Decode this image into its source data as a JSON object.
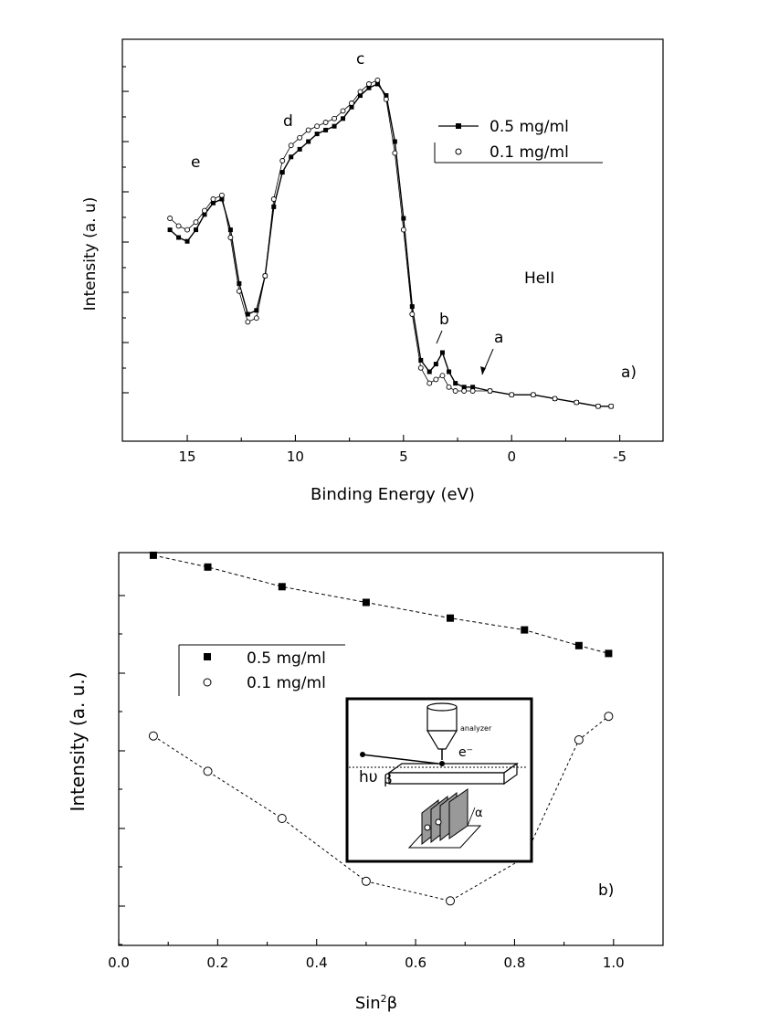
{
  "chart_data": [
    {
      "panel": "a)",
      "type": "line",
      "xlabel": "Binding Energy (eV)",
      "ylabel": "Intensity (a. u)",
      "xlim": [
        18,
        -7
      ],
      "x_reversed": true,
      "xticks": [
        15,
        10,
        5,
        0,
        -5
      ],
      "xtick_labels": [
        "15",
        "10",
        "5",
        "0",
        "-5"
      ],
      "y_tick_labels_shown": false,
      "ylim": [
        0,
        1
      ],
      "legend": [
        {
          "label": "0.5 mg/ml",
          "marker": "filled-square"
        },
        {
          "label": "0.1 mg/ml",
          "marker": "open-circle"
        }
      ],
      "legend_position": "top-right",
      "series": [
        {
          "name": "0.5 mg/ml",
          "x": [
            15.8,
            15.4,
            15.0,
            14.6,
            14.2,
            13.8,
            13.4,
            13.0,
            12.6,
            12.2,
            11.8,
            11.4,
            11.0,
            10.6,
            10.2,
            9.8,
            9.4,
            9.0,
            8.6,
            8.2,
            7.8,
            7.4,
            7.0,
            6.6,
            6.2,
            5.8,
            5.4,
            5.0,
            4.6,
            4.2,
            3.8,
            3.5,
            3.2,
            2.9,
            2.6,
            2.2,
            1.8,
            1.0,
            0,
            -1,
            -2,
            -3,
            -4,
            -4.6
          ],
          "y": [
            0.52,
            0.5,
            0.49,
            0.52,
            0.56,
            0.59,
            0.6,
            0.52,
            0.38,
            0.3,
            0.31,
            0.4,
            0.58,
            0.67,
            0.71,
            0.73,
            0.75,
            0.77,
            0.78,
            0.79,
            0.81,
            0.84,
            0.87,
            0.89,
            0.9,
            0.87,
            0.75,
            0.55,
            0.32,
            0.18,
            0.15,
            0.17,
            0.2,
            0.15,
            0.12,
            0.11,
            0.11,
            0.1,
            0.09,
            0.09,
            0.08,
            0.07,
            0.06,
            0.06
          ]
        },
        {
          "name": "0.1 mg/ml",
          "x": [
            15.8,
            15.4,
            15.0,
            14.6,
            14.2,
            13.8,
            13.4,
            13.0,
            12.6,
            12.2,
            11.8,
            11.4,
            11.0,
            10.6,
            10.2,
            9.8,
            9.4,
            9.0,
            8.6,
            8.2,
            7.8,
            7.4,
            7.0,
            6.6,
            6.2,
            5.8,
            5.4,
            5.0,
            4.6,
            4.2,
            3.8,
            3.5,
            3.2,
            2.9,
            2.6,
            2.2,
            1.8,
            1.0,
            0,
            -1,
            -2,
            -3,
            -4,
            -4.6
          ],
          "y": [
            0.55,
            0.53,
            0.52,
            0.54,
            0.57,
            0.6,
            0.61,
            0.5,
            0.36,
            0.28,
            0.29,
            0.4,
            0.6,
            0.7,
            0.74,
            0.76,
            0.78,
            0.79,
            0.8,
            0.81,
            0.83,
            0.85,
            0.88,
            0.9,
            0.91,
            0.86,
            0.72,
            0.52,
            0.3,
            0.16,
            0.12,
            0.13,
            0.14,
            0.11,
            0.1,
            0.1,
            0.1,
            0.1,
            0.09,
            0.09,
            0.08,
            0.07,
            0.06,
            0.06
          ]
        }
      ],
      "annotations": [
        {
          "text": "a",
          "x": 0.5
        },
        {
          "text": "b",
          "x": 3.1
        },
        {
          "text": "c",
          "x": 6.3
        },
        {
          "text": "d",
          "x": 10.0
        },
        {
          "text": "e",
          "x": 14.2
        },
        {
          "text": "HeII",
          "x": 4.0
        },
        {
          "text": "a)",
          "x": -4.5
        }
      ]
    },
    {
      "panel": "b)",
      "type": "line",
      "xlabel": "Sin²β",
      "xlabel_base": "Sin",
      "xlabel_sup": "2",
      "xlabel_tail": "β",
      "ylabel": "Intensity (a. u.)",
      "xlim": [
        0.0,
        1.1
      ],
      "xticks": [
        0.0,
        0.2,
        0.4,
        0.6,
        0.8,
        1.0
      ],
      "xtick_labels": [
        "0.0",
        "0.2",
        "0.4",
        "0.6",
        "0.8",
        "1.0"
      ],
      "y_tick_labels_shown": false,
      "ylim": [
        0,
        1
      ],
      "legend": [
        {
          "label": "0.5 mg/ml",
          "marker": "filled-square"
        },
        {
          "label": "0.1 mg/ml",
          "marker": "open-circle"
        }
      ],
      "legend_position": "center-left",
      "series": [
        {
          "name": "0.5 mg/ml",
          "x": [
            0.07,
            0.18,
            0.33,
            0.5,
            0.67,
            0.82,
            0.93,
            0.99
          ],
          "y": [
            0.97,
            0.94,
            0.89,
            0.85,
            0.81,
            0.78,
            0.74,
            0.72
          ]
        },
        {
          "name": "0.1 mg/ml",
          "x": [
            0.07,
            0.18,
            0.33,
            0.5,
            0.67,
            0.82,
            0.93,
            0.99
          ],
          "y": [
            0.51,
            0.42,
            0.3,
            0.14,
            0.09,
            0.2,
            0.5,
            0.56
          ]
        }
      ],
      "annotations": [
        {
          "text": "b)",
          "x": 0.98
        }
      ],
      "inset": {
        "description": "experimental geometry schematic",
        "labels": {
          "analyzer": "analyzer",
          "photon": "hυ",
          "angle_beta": "β",
          "electron": "e⁻",
          "angle_alpha": "α"
        }
      }
    }
  ]
}
